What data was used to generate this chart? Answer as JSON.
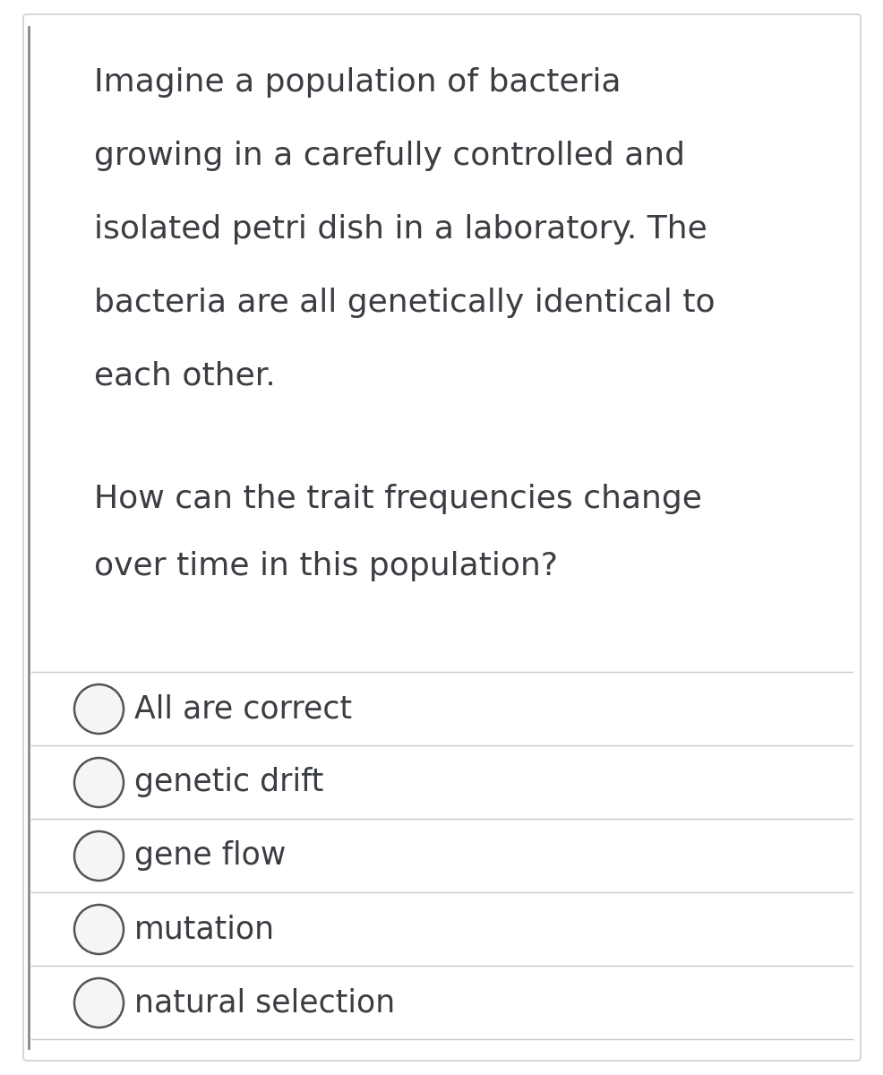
{
  "background_color": "#ffffff",
  "card_border_color": "#d0d0d0",
  "left_border_color": "#888888",
  "paragraph1_lines": [
    "Imagine a population of bacteria",
    "growing in a carefully controlled and",
    "isolated petri dish in a laboratory. The",
    "bacteria are all genetically identical to",
    "each other."
  ],
  "paragraph2_lines": [
    "How can the trait frequencies change",
    "over time in this population?"
  ],
  "options": [
    "All are correct",
    "genetic drift",
    "gene flow",
    "mutation",
    "natural selection"
  ],
  "text_color": "#3a3d42",
  "line_color": "#c8c8c8",
  "circle_edge_color": "#555555",
  "circle_fill_color": "#f5f5f5",
  "font_size_body": 26,
  "font_size_options": 25,
  "fig_width": 9.87,
  "fig_height": 12.0
}
